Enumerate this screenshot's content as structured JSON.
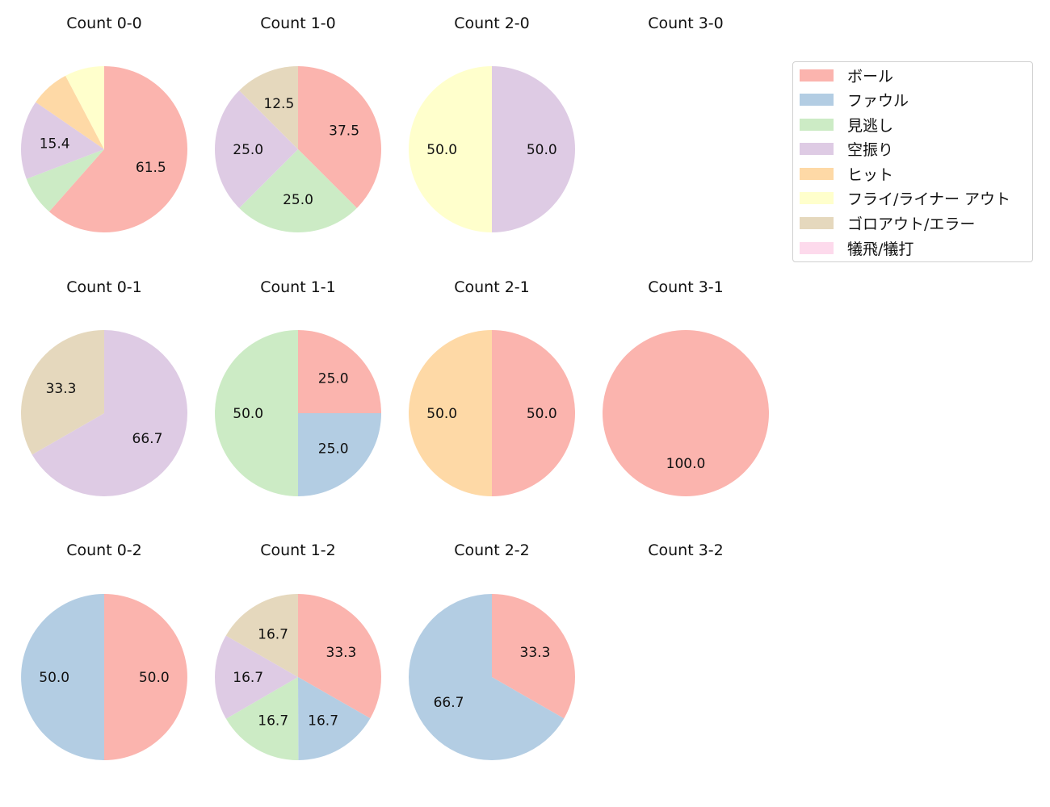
{
  "chart_data": [
    {
      "type": "pie",
      "title": "Count 0-0",
      "slices": [
        {
          "category": "ボール",
          "value": 61.5
        },
        {
          "category": "見逃し",
          "value": 7.7
        },
        {
          "category": "空振り",
          "value": 15.4
        },
        {
          "category": "ヒット",
          "value": 7.7
        },
        {
          "category": "フライ/ライナー アウト",
          "value": 7.7
        }
      ]
    },
    {
      "type": "pie",
      "title": "Count 1-0",
      "slices": [
        {
          "category": "ボール",
          "value": 37.5
        },
        {
          "category": "見逃し",
          "value": 25.0
        },
        {
          "category": "空振り",
          "value": 25.0
        },
        {
          "category": "ゴロアウト/エラー",
          "value": 12.5
        }
      ]
    },
    {
      "type": "pie",
      "title": "Count 2-0",
      "slices": [
        {
          "category": "空振り",
          "value": 50.0
        },
        {
          "category": "フライ/ライナー アウト",
          "value": 50.0
        }
      ]
    },
    {
      "type": "pie",
      "title": "Count 3-0",
      "slices": []
    },
    {
      "type": "pie",
      "title": "Count 0-1",
      "slices": [
        {
          "category": "空振り",
          "value": 66.7
        },
        {
          "category": "ゴロアウト/エラー",
          "value": 33.3
        }
      ]
    },
    {
      "type": "pie",
      "title": "Count 1-1",
      "slices": [
        {
          "category": "ボール",
          "value": 25.0
        },
        {
          "category": "ファウル",
          "value": 25.0
        },
        {
          "category": "見逃し",
          "value": 50.0
        }
      ]
    },
    {
      "type": "pie",
      "title": "Count 2-1",
      "slices": [
        {
          "category": "ボール",
          "value": 50.0
        },
        {
          "category": "ヒット",
          "value": 50.0
        }
      ]
    },
    {
      "type": "pie",
      "title": "Count 3-1",
      "slices": [
        {
          "category": "ボール",
          "value": 100.0
        }
      ]
    },
    {
      "type": "pie",
      "title": "Count 0-2",
      "slices": [
        {
          "category": "ボール",
          "value": 50.0
        },
        {
          "category": "ファウル",
          "value": 50.0
        }
      ]
    },
    {
      "type": "pie",
      "title": "Count 1-2",
      "slices": [
        {
          "category": "ボール",
          "value": 33.3
        },
        {
          "category": "ファウル",
          "value": 16.7
        },
        {
          "category": "見逃し",
          "value": 16.7
        },
        {
          "category": "空振り",
          "value": 16.7
        },
        {
          "category": "ゴロアウト/エラー",
          "value": 16.7
        }
      ]
    },
    {
      "type": "pie",
      "title": "Count 2-2",
      "slices": [
        {
          "category": "ボール",
          "value": 33.3
        },
        {
          "category": "ファウル",
          "value": 66.7
        }
      ]
    },
    {
      "type": "pie",
      "title": "Count 3-2",
      "slices": []
    }
  ],
  "legend": {
    "placement": "top-right",
    "items": [
      {
        "label": "ボール",
        "color": "#fbb4ae"
      },
      {
        "label": "ファウル",
        "color": "#b3cde3"
      },
      {
        "label": "見逃し",
        "color": "#ccebc5"
      },
      {
        "label": "空振り",
        "color": "#decbe4"
      },
      {
        "label": "ヒット",
        "color": "#fed9a6"
      },
      {
        "label": "フライ/ライナー アウト",
        "color": "#ffffcc"
      },
      {
        "label": "ゴロアウト/エラー",
        "color": "#e5d8bd"
      },
      {
        "label": "犠飛/犠打",
        "color": "#fddaec"
      }
    ]
  }
}
